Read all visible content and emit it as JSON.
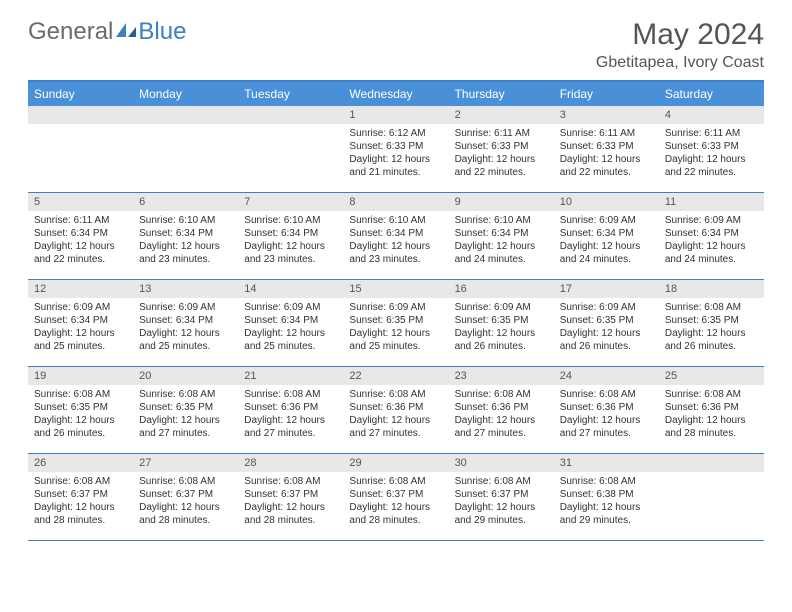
{
  "logo": {
    "text_a": "General",
    "text_b": "Blue"
  },
  "title": "May 2024",
  "location": "Gbetitapea, Ivory Coast",
  "colors": {
    "header_bg": "#4a90d9",
    "header_border": "#3b7fc4",
    "daynum_bg": "#e8e8e8",
    "text_muted": "#555555",
    "text_body": "#333333",
    "logo_gray": "#6b6b6b",
    "logo_blue": "#3b7fc4"
  },
  "weekdays": [
    "Sunday",
    "Monday",
    "Tuesday",
    "Wednesday",
    "Thursday",
    "Friday",
    "Saturday"
  ],
  "weeks": [
    [
      {
        "n": "",
        "sr": "",
        "ss": "",
        "dl": ""
      },
      {
        "n": "",
        "sr": "",
        "ss": "",
        "dl": ""
      },
      {
        "n": "",
        "sr": "",
        "ss": "",
        "dl": ""
      },
      {
        "n": "1",
        "sr": "6:12 AM",
        "ss": "6:33 PM",
        "dl": "12 hours and 21 minutes."
      },
      {
        "n": "2",
        "sr": "6:11 AM",
        "ss": "6:33 PM",
        "dl": "12 hours and 22 minutes."
      },
      {
        "n": "3",
        "sr": "6:11 AM",
        "ss": "6:33 PM",
        "dl": "12 hours and 22 minutes."
      },
      {
        "n": "4",
        "sr": "6:11 AM",
        "ss": "6:33 PM",
        "dl": "12 hours and 22 minutes."
      }
    ],
    [
      {
        "n": "5",
        "sr": "6:11 AM",
        "ss": "6:34 PM",
        "dl": "12 hours and 22 minutes."
      },
      {
        "n": "6",
        "sr": "6:10 AM",
        "ss": "6:34 PM",
        "dl": "12 hours and 23 minutes."
      },
      {
        "n": "7",
        "sr": "6:10 AM",
        "ss": "6:34 PM",
        "dl": "12 hours and 23 minutes."
      },
      {
        "n": "8",
        "sr": "6:10 AM",
        "ss": "6:34 PM",
        "dl": "12 hours and 23 minutes."
      },
      {
        "n": "9",
        "sr": "6:10 AM",
        "ss": "6:34 PM",
        "dl": "12 hours and 24 minutes."
      },
      {
        "n": "10",
        "sr": "6:09 AM",
        "ss": "6:34 PM",
        "dl": "12 hours and 24 minutes."
      },
      {
        "n": "11",
        "sr": "6:09 AM",
        "ss": "6:34 PM",
        "dl": "12 hours and 24 minutes."
      }
    ],
    [
      {
        "n": "12",
        "sr": "6:09 AM",
        "ss": "6:34 PM",
        "dl": "12 hours and 25 minutes."
      },
      {
        "n": "13",
        "sr": "6:09 AM",
        "ss": "6:34 PM",
        "dl": "12 hours and 25 minutes."
      },
      {
        "n": "14",
        "sr": "6:09 AM",
        "ss": "6:34 PM",
        "dl": "12 hours and 25 minutes."
      },
      {
        "n": "15",
        "sr": "6:09 AM",
        "ss": "6:35 PM",
        "dl": "12 hours and 25 minutes."
      },
      {
        "n": "16",
        "sr": "6:09 AM",
        "ss": "6:35 PM",
        "dl": "12 hours and 26 minutes."
      },
      {
        "n": "17",
        "sr": "6:09 AM",
        "ss": "6:35 PM",
        "dl": "12 hours and 26 minutes."
      },
      {
        "n": "18",
        "sr": "6:08 AM",
        "ss": "6:35 PM",
        "dl": "12 hours and 26 minutes."
      }
    ],
    [
      {
        "n": "19",
        "sr": "6:08 AM",
        "ss": "6:35 PM",
        "dl": "12 hours and 26 minutes."
      },
      {
        "n": "20",
        "sr": "6:08 AM",
        "ss": "6:35 PM",
        "dl": "12 hours and 27 minutes."
      },
      {
        "n": "21",
        "sr": "6:08 AM",
        "ss": "6:36 PM",
        "dl": "12 hours and 27 minutes."
      },
      {
        "n": "22",
        "sr": "6:08 AM",
        "ss": "6:36 PM",
        "dl": "12 hours and 27 minutes."
      },
      {
        "n": "23",
        "sr": "6:08 AM",
        "ss": "6:36 PM",
        "dl": "12 hours and 27 minutes."
      },
      {
        "n": "24",
        "sr": "6:08 AM",
        "ss": "6:36 PM",
        "dl": "12 hours and 27 minutes."
      },
      {
        "n": "25",
        "sr": "6:08 AM",
        "ss": "6:36 PM",
        "dl": "12 hours and 28 minutes."
      }
    ],
    [
      {
        "n": "26",
        "sr": "6:08 AM",
        "ss": "6:37 PM",
        "dl": "12 hours and 28 minutes."
      },
      {
        "n": "27",
        "sr": "6:08 AM",
        "ss": "6:37 PM",
        "dl": "12 hours and 28 minutes."
      },
      {
        "n": "28",
        "sr": "6:08 AM",
        "ss": "6:37 PM",
        "dl": "12 hours and 28 minutes."
      },
      {
        "n": "29",
        "sr": "6:08 AM",
        "ss": "6:37 PM",
        "dl": "12 hours and 28 minutes."
      },
      {
        "n": "30",
        "sr": "6:08 AM",
        "ss": "6:37 PM",
        "dl": "12 hours and 29 minutes."
      },
      {
        "n": "31",
        "sr": "6:08 AM",
        "ss": "6:38 PM",
        "dl": "12 hours and 29 minutes."
      },
      {
        "n": "",
        "sr": "",
        "ss": "",
        "dl": ""
      }
    ]
  ],
  "labels": {
    "sunrise": "Sunrise:",
    "sunset": "Sunset:",
    "daylight": "Daylight:"
  }
}
